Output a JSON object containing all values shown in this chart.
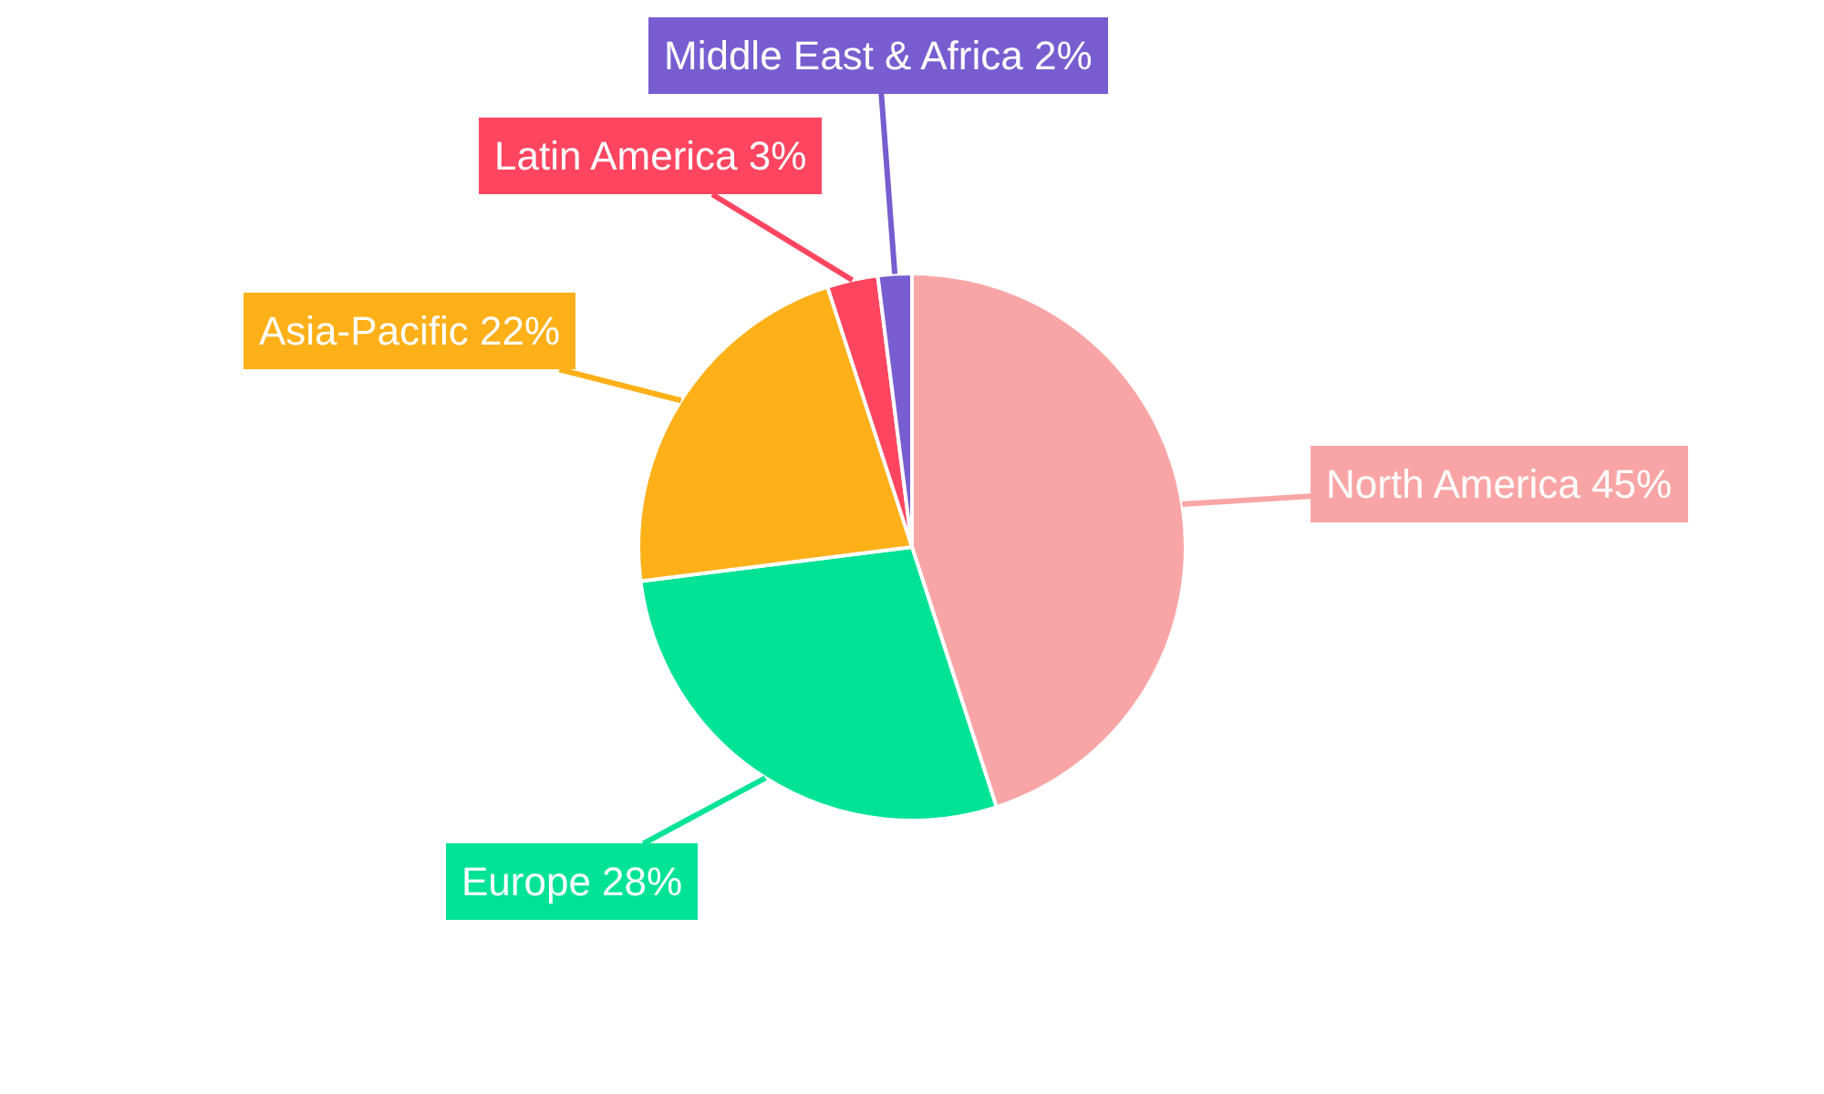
{
  "chart_data": {
    "type": "pie",
    "categories": [
      "North America",
      "Europe",
      "Asia-Pacific",
      "Latin America",
      "Middle East & Africa"
    ],
    "values": [
      45,
      28,
      22,
      3,
      2
    ],
    "value_labels": [
      "45%",
      "28%",
      "22%",
      "3%",
      "2%"
    ],
    "colors": [
      "#f9a5a6",
      "#00e396",
      "#feb019",
      "#ff4560",
      "#775dd0"
    ],
    "legend": false
  }
}
